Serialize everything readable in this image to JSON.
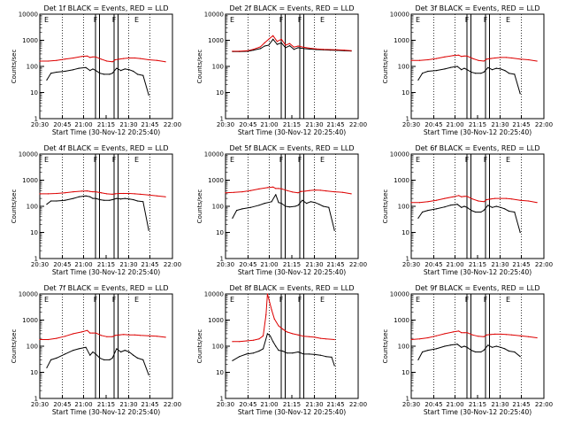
{
  "figure": {
    "xaxis_title": "Start Time (30-Nov-12 20:25:40)",
    "ylabel": "Counts/sec",
    "x_tick_labels": [
      "20:30",
      "20:45",
      "21:00",
      "21:15",
      "21:30",
      "21:45",
      "22:00"
    ],
    "y_tick_labels": [
      "1",
      "10",
      "100",
      "1000",
      "10000"
    ],
    "marker_labels": [
      "E",
      "F",
      "F",
      "E"
    ],
    "colors": {
      "events": "#000000",
      "lld": "#dd0000",
      "background": "#ffffff"
    }
  },
  "chart_data": [
    {
      "type": "line",
      "title": "Det 1f BLACK = Events, RED = LLD",
      "xlabel": "Start Time (30-Nov-12 20:25:40)",
      "ylabel": "Counts/sec",
      "y_scale": "log",
      "ylim": [
        1,
        10000
      ],
      "x_unit": "minutes after 20:25:40",
      "xlim": [
        0,
        95
      ],
      "series": [
        {
          "name": "Events",
          "color": "#000000",
          "x": [
            5,
            8,
            12,
            18,
            24,
            28,
            33,
            36,
            38,
            40,
            43,
            46,
            50,
            52,
            55,
            58,
            61,
            64,
            67,
            70,
            74,
            78
          ],
          "y": [
            30,
            55,
            60,
            65,
            75,
            85,
            90,
            70,
            80,
            70,
            55,
            50,
            50,
            55,
            85,
            70,
            80,
            75,
            65,
            50,
            45,
            8
          ]
        },
        {
          "name": "LLD",
          "color": "#dd0000",
          "x": [
            0,
            6,
            12,
            18,
            24,
            30,
            34,
            36,
            38,
            40,
            44,
            48,
            52,
            54,
            57,
            60,
            64,
            68,
            72,
            78,
            84,
            90
          ],
          "y": [
            160,
            160,
            170,
            190,
            210,
            240,
            250,
            220,
            230,
            230,
            190,
            160,
            150,
            180,
            190,
            200,
            210,
            210,
            200,
            180,
            170,
            150
          ]
        }
      ]
    },
    {
      "type": "line",
      "title": "Det 2f BLACK = Events, RED = LLD",
      "xlabel": "Start Time (30-Nov-12 20:25:40)",
      "ylabel": "Counts/sec",
      "y_scale": "log",
      "ylim": [
        1,
        10000
      ],
      "x_unit": "minutes after 20:25:40",
      "xlim": [
        0,
        95
      ],
      "series": [
        {
          "name": "Events",
          "color": "#000000",
          "x": [
            5,
            10,
            16,
            20,
            25,
            28,
            31,
            34,
            37,
            40,
            43,
            46,
            49,
            52,
            56,
            60,
            65,
            70,
            75,
            80,
            85,
            90
          ],
          "y": [
            370,
            370,
            380,
            420,
            480,
            600,
            650,
            1100,
            700,
            800,
            520,
            620,
            450,
            520,
            480,
            460,
            440,
            430,
            420,
            410,
            400,
            390
          ]
        },
        {
          "name": "LLD",
          "color": "#dd0000",
          "x": [
            5,
            10,
            16,
            20,
            25,
            28,
            31,
            34,
            37,
            40,
            43,
            46,
            49,
            52,
            56,
            60,
            65,
            70,
            75,
            80,
            85,
            90
          ],
          "y": [
            380,
            380,
            400,
            450,
            560,
            800,
            1100,
            1500,
            900,
            1100,
            650,
            750,
            550,
            600,
            540,
            500,
            470,
            450,
            440,
            430,
            420,
            400
          ]
        }
      ]
    },
    {
      "type": "line",
      "title": "Det 3f BLACK = Events, RED = LLD",
      "xlabel": "Start Time (30-Nov-12 20:25:40)",
      "ylabel": "Counts/sec",
      "y_scale": "log",
      "ylim": [
        1,
        10000
      ],
      "x_unit": "minutes after 20:25:40",
      "xlim": [
        0,
        95
      ],
      "series": [
        {
          "name": "Events",
          "color": "#000000",
          "x": [
            5,
            8,
            12,
            18,
            24,
            28,
            33,
            36,
            38,
            40,
            43,
            46,
            50,
            52,
            55,
            58,
            61,
            64,
            67,
            70,
            74,
            78
          ],
          "y": [
            30,
            55,
            65,
            70,
            80,
            90,
            100,
            75,
            85,
            75,
            60,
            55,
            55,
            60,
            90,
            75,
            85,
            80,
            70,
            55,
            50,
            9
          ]
        },
        {
          "name": "LLD",
          "color": "#dd0000",
          "x": [
            0,
            6,
            12,
            18,
            24,
            30,
            34,
            36,
            38,
            40,
            44,
            48,
            52,
            54,
            57,
            60,
            64,
            68,
            72,
            78,
            84,
            90
          ],
          "y": [
            170,
            170,
            180,
            200,
            230,
            260,
            270,
            240,
            250,
            250,
            200,
            170,
            160,
            190,
            200,
            210,
            220,
            220,
            210,
            190,
            180,
            160
          ]
        }
      ]
    },
    {
      "type": "line",
      "title": "Det 4f BLACK = Events, RED = LLD",
      "xlabel": "Start Time (30-Nov-12 20:25:40)",
      "ylabel": "Counts/sec",
      "y_scale": "log",
      "ylim": [
        1,
        10000
      ],
      "x_unit": "minutes after 20:25:40",
      "xlim": [
        0,
        95
      ],
      "series": [
        {
          "name": "Events",
          "color": "#000000",
          "x": [
            5,
            8,
            12,
            18,
            24,
            28,
            33,
            36,
            38,
            40,
            43,
            46,
            50,
            52,
            55,
            58,
            61,
            64,
            67,
            70,
            74,
            78
          ],
          "y": [
            120,
            160,
            160,
            170,
            200,
            230,
            250,
            230,
            200,
            200,
            180,
            170,
            170,
            180,
            200,
            190,
            200,
            190,
            180,
            160,
            150,
            12
          ]
        },
        {
          "name": "LLD",
          "color": "#dd0000",
          "x": [
            0,
            6,
            12,
            18,
            24,
            30,
            34,
            36,
            38,
            40,
            44,
            48,
            52,
            54,
            57,
            60,
            64,
            68,
            72,
            78,
            84,
            90
          ],
          "y": [
            300,
            300,
            310,
            330,
            360,
            380,
            390,
            370,
            360,
            360,
            330,
            300,
            290,
            300,
            310,
            310,
            310,
            300,
            290,
            270,
            250,
            230
          ]
        }
      ]
    },
    {
      "type": "line",
      "title": "Det 5f BLACK = Events, RED = LLD",
      "xlabel": "Start Time (30-Nov-12 20:25:40)",
      "ylabel": "Counts/sec",
      "y_scale": "log",
      "ylim": [
        1,
        10000
      ],
      "x_unit": "minutes after 20:25:40",
      "xlim": [
        0,
        95
      ],
      "series": [
        {
          "name": "Events",
          "color": "#000000",
          "x": [
            5,
            8,
            12,
            18,
            24,
            28,
            33,
            36,
            38,
            40,
            43,
            46,
            50,
            52,
            55,
            58,
            61,
            64,
            67,
            70,
            74,
            78
          ],
          "y": [
            35,
            70,
            80,
            90,
            110,
            130,
            150,
            280,
            140,
            130,
            100,
            95,
            100,
            110,
            170,
            130,
            150,
            140,
            120,
            100,
            90,
            12
          ]
        },
        {
          "name": "LLD",
          "color": "#dd0000",
          "x": [
            0,
            6,
            12,
            18,
            24,
            30,
            34,
            36,
            38,
            40,
            44,
            48,
            52,
            54,
            57,
            60,
            64,
            68,
            72,
            78,
            84,
            90
          ],
          "y": [
            330,
            340,
            360,
            400,
            460,
            520,
            550,
            480,
            480,
            470,
            400,
            350,
            330,
            370,
            380,
            400,
            420,
            410,
            390,
            360,
            340,
            300
          ]
        }
      ]
    },
    {
      "type": "line",
      "title": "Det 6f BLACK = Events, RED = LLD",
      "xlabel": "Start Time (30-Nov-12 20:25:40)",
      "ylabel": "Counts/sec",
      "y_scale": "log",
      "ylim": [
        1,
        10000
      ],
      "x_unit": "minutes after 20:25:40",
      "xlim": [
        0,
        95
      ],
      "series": [
        {
          "name": "Events",
          "color": "#000000",
          "x": [
            5,
            8,
            12,
            18,
            24,
            28,
            33,
            36,
            38,
            40,
            43,
            46,
            50,
            52,
            55,
            58,
            61,
            64,
            67,
            70,
            74,
            78
          ],
          "y": [
            35,
            60,
            70,
            80,
            95,
            110,
            120,
            90,
            100,
            90,
            70,
            60,
            60,
            70,
            110,
            90,
            100,
            90,
            80,
            65,
            60,
            10
          ]
        },
        {
          "name": "LLD",
          "color": "#dd0000",
          "x": [
            0,
            6,
            12,
            18,
            24,
            30,
            34,
            36,
            38,
            40,
            44,
            48,
            52,
            54,
            57,
            60,
            64,
            68,
            72,
            78,
            84,
            90
          ],
          "y": [
            140,
            140,
            150,
            170,
            200,
            230,
            260,
            230,
            240,
            240,
            190,
            160,
            150,
            180,
            190,
            200,
            200,
            200,
            190,
            170,
            160,
            140
          ]
        }
      ]
    },
    {
      "type": "line",
      "title": "Det 7f BLACK = Events, RED = LLD",
      "xlabel": "Start Time (30-Nov-12 20:25:40)",
      "ylabel": "Counts/sec",
      "y_scale": "log",
      "ylim": [
        1,
        10000
      ],
      "x_unit": "minutes after 20:25:40",
      "xlim": [
        0,
        95
      ],
      "series": [
        {
          "name": "Events",
          "color": "#000000",
          "x": [
            5,
            8,
            12,
            18,
            24,
            28,
            33,
            36,
            38,
            40,
            43,
            46,
            50,
            52,
            55,
            58,
            61,
            64,
            67,
            70,
            74,
            78
          ],
          "y": [
            15,
            30,
            35,
            50,
            70,
            80,
            90,
            45,
            60,
            50,
            35,
            30,
            30,
            35,
            80,
            60,
            70,
            60,
            45,
            35,
            30,
            8
          ]
        },
        {
          "name": "LLD",
          "color": "#dd0000",
          "x": [
            0,
            6,
            12,
            18,
            24,
            30,
            34,
            36,
            38,
            40,
            44,
            48,
            52,
            54,
            57,
            60,
            64,
            68,
            72,
            78,
            84,
            90
          ],
          "y": [
            180,
            180,
            200,
            240,
            300,
            350,
            400,
            320,
            320,
            320,
            260,
            230,
            230,
            260,
            270,
            280,
            270,
            270,
            260,
            250,
            240,
            220
          ]
        }
      ]
    },
    {
      "type": "line",
      "title": "Det 8f BLACK = Events, RED = LLD",
      "xlabel": "Start Time (30-Nov-12 20:25:40)",
      "ylabel": "Counts/sec",
      "y_scale": "log",
      "ylim": [
        1,
        10000
      ],
      "x_unit": "minutes after 20:25:40",
      "xlim": [
        0,
        95
      ],
      "series": [
        {
          "name": "Events",
          "color": "#000000",
          "x": [
            5,
            10,
            15,
            20,
            24,
            27,
            30,
            32,
            34,
            36,
            38,
            41,
            44,
            48,
            52,
            56,
            60,
            64,
            68,
            72,
            76,
            78
          ],
          "y": [
            28,
            40,
            50,
            55,
            65,
            80,
            300,
            250,
            150,
            100,
            70,
            65,
            55,
            55,
            60,
            50,
            50,
            48,
            45,
            40,
            38,
            18
          ]
        },
        {
          "name": "LLD",
          "color": "#dd0000",
          "x": [
            5,
            10,
            15,
            20,
            24,
            27,
            29,
            30,
            31,
            33,
            35,
            38,
            41,
            44,
            48,
            52,
            56,
            60,
            64,
            68,
            72,
            78
          ],
          "y": [
            150,
            150,
            160,
            170,
            190,
            250,
            1600,
            10000,
            6500,
            2500,
            1100,
            600,
            450,
            350,
            300,
            270,
            240,
            230,
            220,
            200,
            190,
            180
          ]
        }
      ]
    },
    {
      "type": "line",
      "title": "Det 9f BLACK = Events, RED = LLD",
      "xlabel": "Start Time (30-Nov-12 20:25:40)",
      "ylabel": "Counts/sec",
      "y_scale": "log",
      "ylim": [
        1,
        10000
      ],
      "x_unit": "minutes after 20:25:40",
      "xlim": [
        0,
        95
      ],
      "series": [
        {
          "name": "Events",
          "color": "#000000",
          "x": [
            5,
            8,
            12,
            18,
            24,
            28,
            33,
            36,
            38,
            40,
            43,
            46,
            50,
            52,
            55,
            58,
            61,
            64,
            67,
            70,
            74,
            78
          ],
          "y": [
            30,
            60,
            70,
            80,
            100,
            110,
            120,
            90,
            100,
            90,
            70,
            60,
            60,
            70,
            110,
            90,
            100,
            90,
            80,
            65,
            60,
            40
          ]
        },
        {
          "name": "LLD",
          "color": "#dd0000",
          "x": [
            0,
            6,
            12,
            18,
            24,
            30,
            34,
            36,
            38,
            40,
            44,
            48,
            52,
            54,
            57,
            60,
            64,
            68,
            72,
            78,
            84,
            90
          ],
          "y": [
            180,
            190,
            210,
            250,
            300,
            350,
            380,
            330,
            330,
            330,
            270,
            240,
            230,
            270,
            280,
            290,
            290,
            280,
            270,
            250,
            230,
            210
          ]
        }
      ]
    }
  ]
}
